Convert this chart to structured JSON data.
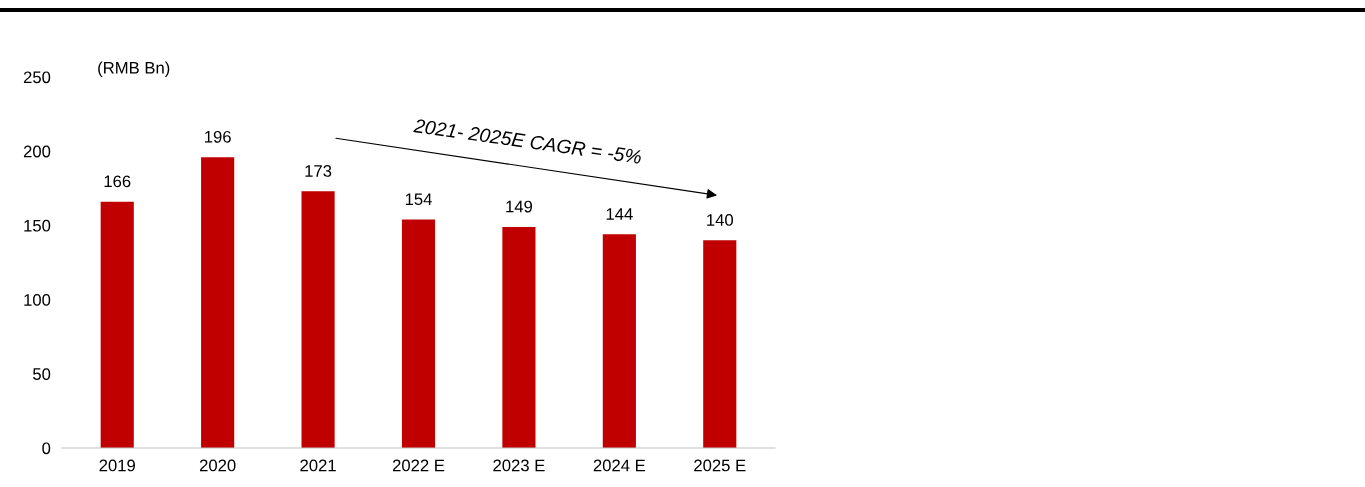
{
  "chart_data": {
    "type": "bar",
    "ylabel": "(RMB Bn)",
    "categories": [
      "2019",
      "2020",
      "2021",
      "2022 E",
      "2023 E",
      "2024 E",
      "2025 E"
    ],
    "values": [
      166,
      196,
      173,
      154,
      149,
      144,
      140
    ],
    "color": "#c00000",
    "ylim": [
      0,
      250
    ],
    "yticks": [
      0,
      50,
      100,
      150,
      200,
      250
    ],
    "grid": false,
    "data_labels": true,
    "annotations": [
      "2021- 2025E CAGR = -5%"
    ]
  }
}
